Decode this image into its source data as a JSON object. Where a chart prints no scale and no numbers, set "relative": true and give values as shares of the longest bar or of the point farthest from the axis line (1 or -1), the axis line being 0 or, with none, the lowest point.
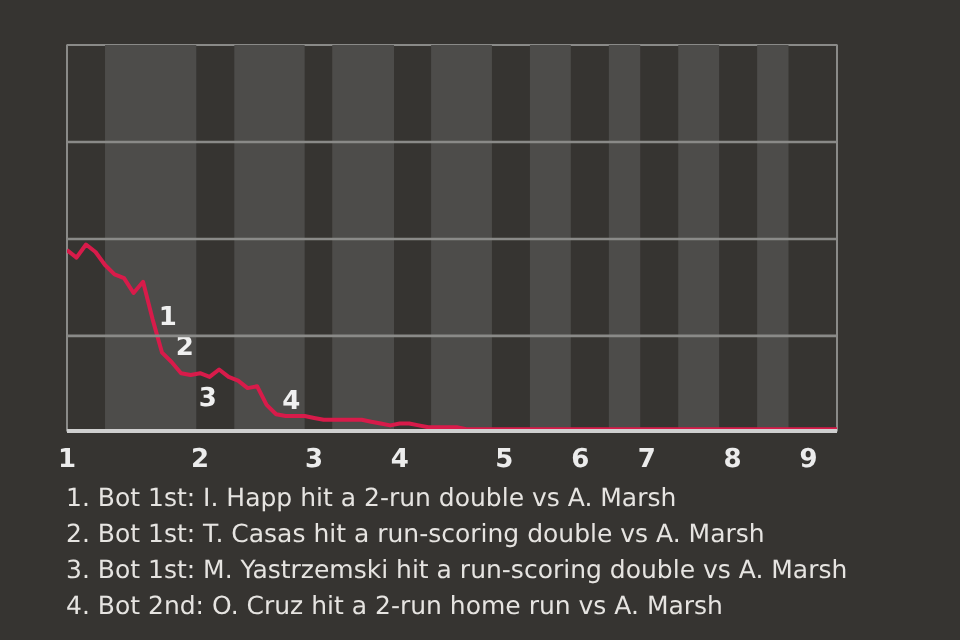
{
  "chart_data": {
    "type": "line",
    "relative": true,
    "categories": [
      "1",
      null,
      null,
      null,
      null,
      null,
      null,
      null,
      null,
      null,
      null,
      null,
      null,
      null,
      "2",
      null,
      null,
      null,
      null,
      null,
      null,
      null,
      null,
      null,
      null,
      null,
      "3",
      null,
      null,
      null,
      null,
      null,
      null,
      null,
      null,
      "4",
      null,
      null,
      null,
      null,
      null,
      null,
      null,
      null,
      null,
      null,
      "5",
      null,
      null,
      null,
      null,
      null,
      null,
      null,
      "6",
      null,
      null,
      null,
      null,
      null,
      null,
      "7",
      null,
      null,
      null,
      null,
      null,
      null,
      null,
      null,
      "8",
      null,
      null,
      null,
      null,
      null,
      null,
      null,
      "9",
      null,
      null,
      null
    ],
    "series": [
      {
        "color": "#d81b4a",
        "values": [
          0.97,
          0.93,
          1.0,
          0.96,
          0.89,
          0.84,
          0.82,
          0.74,
          0.8,
          0.6,
          0.42,
          0.37,
          0.31,
          0.3,
          0.31,
          0.29,
          0.33,
          0.29,
          0.27,
          0.23,
          0.24,
          0.14,
          0.09,
          0.08,
          0.08,
          0.08,
          0.07,
          0.06,
          0.06,
          0.06,
          0.06,
          0.06,
          0.05,
          0.04,
          0.03,
          0.04,
          0.04,
          0.03,
          0.02,
          0.02,
          0.02,
          0.02,
          0.01,
          0.01,
          0.01,
          0.01,
          0.01,
          0.01,
          0.01,
          0.01,
          0.01,
          0.01,
          0.01,
          0.01,
          0.01,
          0.01,
          0.01,
          0.01,
          0.01,
          0.01,
          0.01,
          0.01,
          0.01,
          0.01,
          0.01,
          0.01,
          0.01,
          0.01,
          0.01,
          0.01,
          0.01,
          0.01,
          0.01,
          0.01,
          0.01,
          0.01,
          0.01,
          0.01,
          0.01,
          0.01,
          0.01,
          0.01
        ]
      }
    ],
    "marker": "none",
    "line_style": "solid",
    "ref_lines": [
      {
        "axis": "y",
        "value": 0.51,
        "color": "#8a8a88"
      },
      {
        "axis": "y",
        "value": 1.03,
        "color": "#8a8a88"
      },
      {
        "axis": "y",
        "value": 1.55,
        "color": "#8a8a88"
      }
    ],
    "annotations": [
      "1",
      "2",
      "3",
      "4",
      "1. Bot 1st: I. Happ hit a 2-run double vs A. Marsh",
      "2. Bot 1st: T. Casas hit a run-scoring double vs A. Marsh",
      "3. Bot 1st: M. Yastrzemski hit a run-scoring double vs A. Marsh",
      "4. Bot 2nd: O. Cruz hit a 2-run home run vs A. Marsh"
    ]
  }
}
